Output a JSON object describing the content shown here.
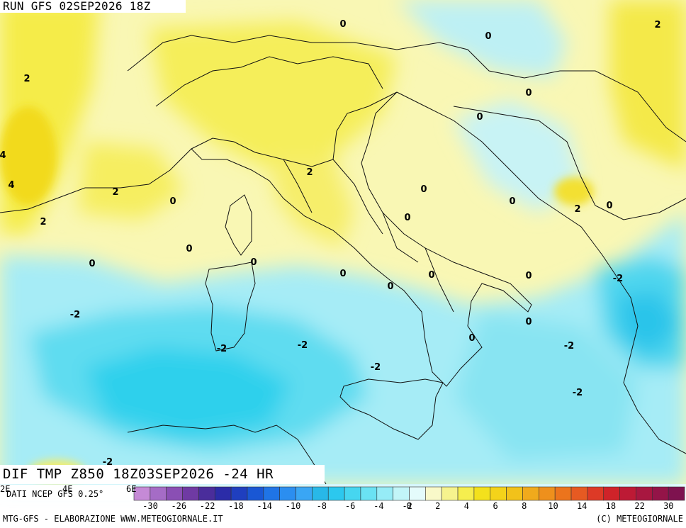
{
  "header": {
    "run_label": "RUN GFS 02SEP2026 18Z"
  },
  "field_title": "DIF TMP Z850 18Z03SEP2026 -24 HR",
  "data_source": "DATI NCEP GFS 0.25°",
  "longitude_ticks": [
    "2E",
    "4E",
    "6E"
  ],
  "footer": {
    "left": "MTG-GFS - ELABORAZIONE WWW.METEOGIORNALE.IT",
    "right": "(C) METEOGIORNALE"
  },
  "colorbar": {
    "colors": [
      "#c58ad6",
      "#a56cc6",
      "#8a4fb4",
      "#6f3aa3",
      "#4a2d9b",
      "#2b2ca8",
      "#1f3fbf",
      "#1957d4",
      "#1f74e6",
      "#2b8ef0",
      "#3aa6f4",
      "#28b8e8",
      "#2cc8ee",
      "#46d6f0",
      "#6ae2f3",
      "#96ecf7",
      "#c2f5f8",
      "#e4fbfb",
      "#f9f9c9",
      "#f6f38e",
      "#f6ee4e",
      "#f3e11c",
      "#f4d31a",
      "#f2c21a",
      "#f0aa1c",
      "#ee901c",
      "#ec741c",
      "#e65a22",
      "#dd3a26",
      "#cf2329",
      "#bd1a35",
      "#a81740",
      "#941448",
      "#7e124f"
    ],
    "tick_labels": [
      "-30",
      "-26",
      "-22",
      "-18",
      "-14",
      "-10",
      "-8",
      "-6",
      "-4",
      "-2",
      "0",
      "2",
      "4",
      "6",
      "8",
      "10",
      "14",
      "18",
      "22",
      "30"
    ]
  },
  "contour_labels": [
    "0",
    "0",
    "2",
    "2",
    "0",
    "0",
    "4",
    "4",
    "2",
    "0",
    "2",
    "0",
    "2",
    "0",
    "0",
    "2",
    "0",
    "0",
    "0",
    "0",
    "0",
    "0",
    "0",
    "0",
    "0",
    "-2",
    "-2",
    "0",
    "-2",
    "-2",
    "-2",
    "-2",
    "-2",
    "-2",
    "0"
  ]
}
